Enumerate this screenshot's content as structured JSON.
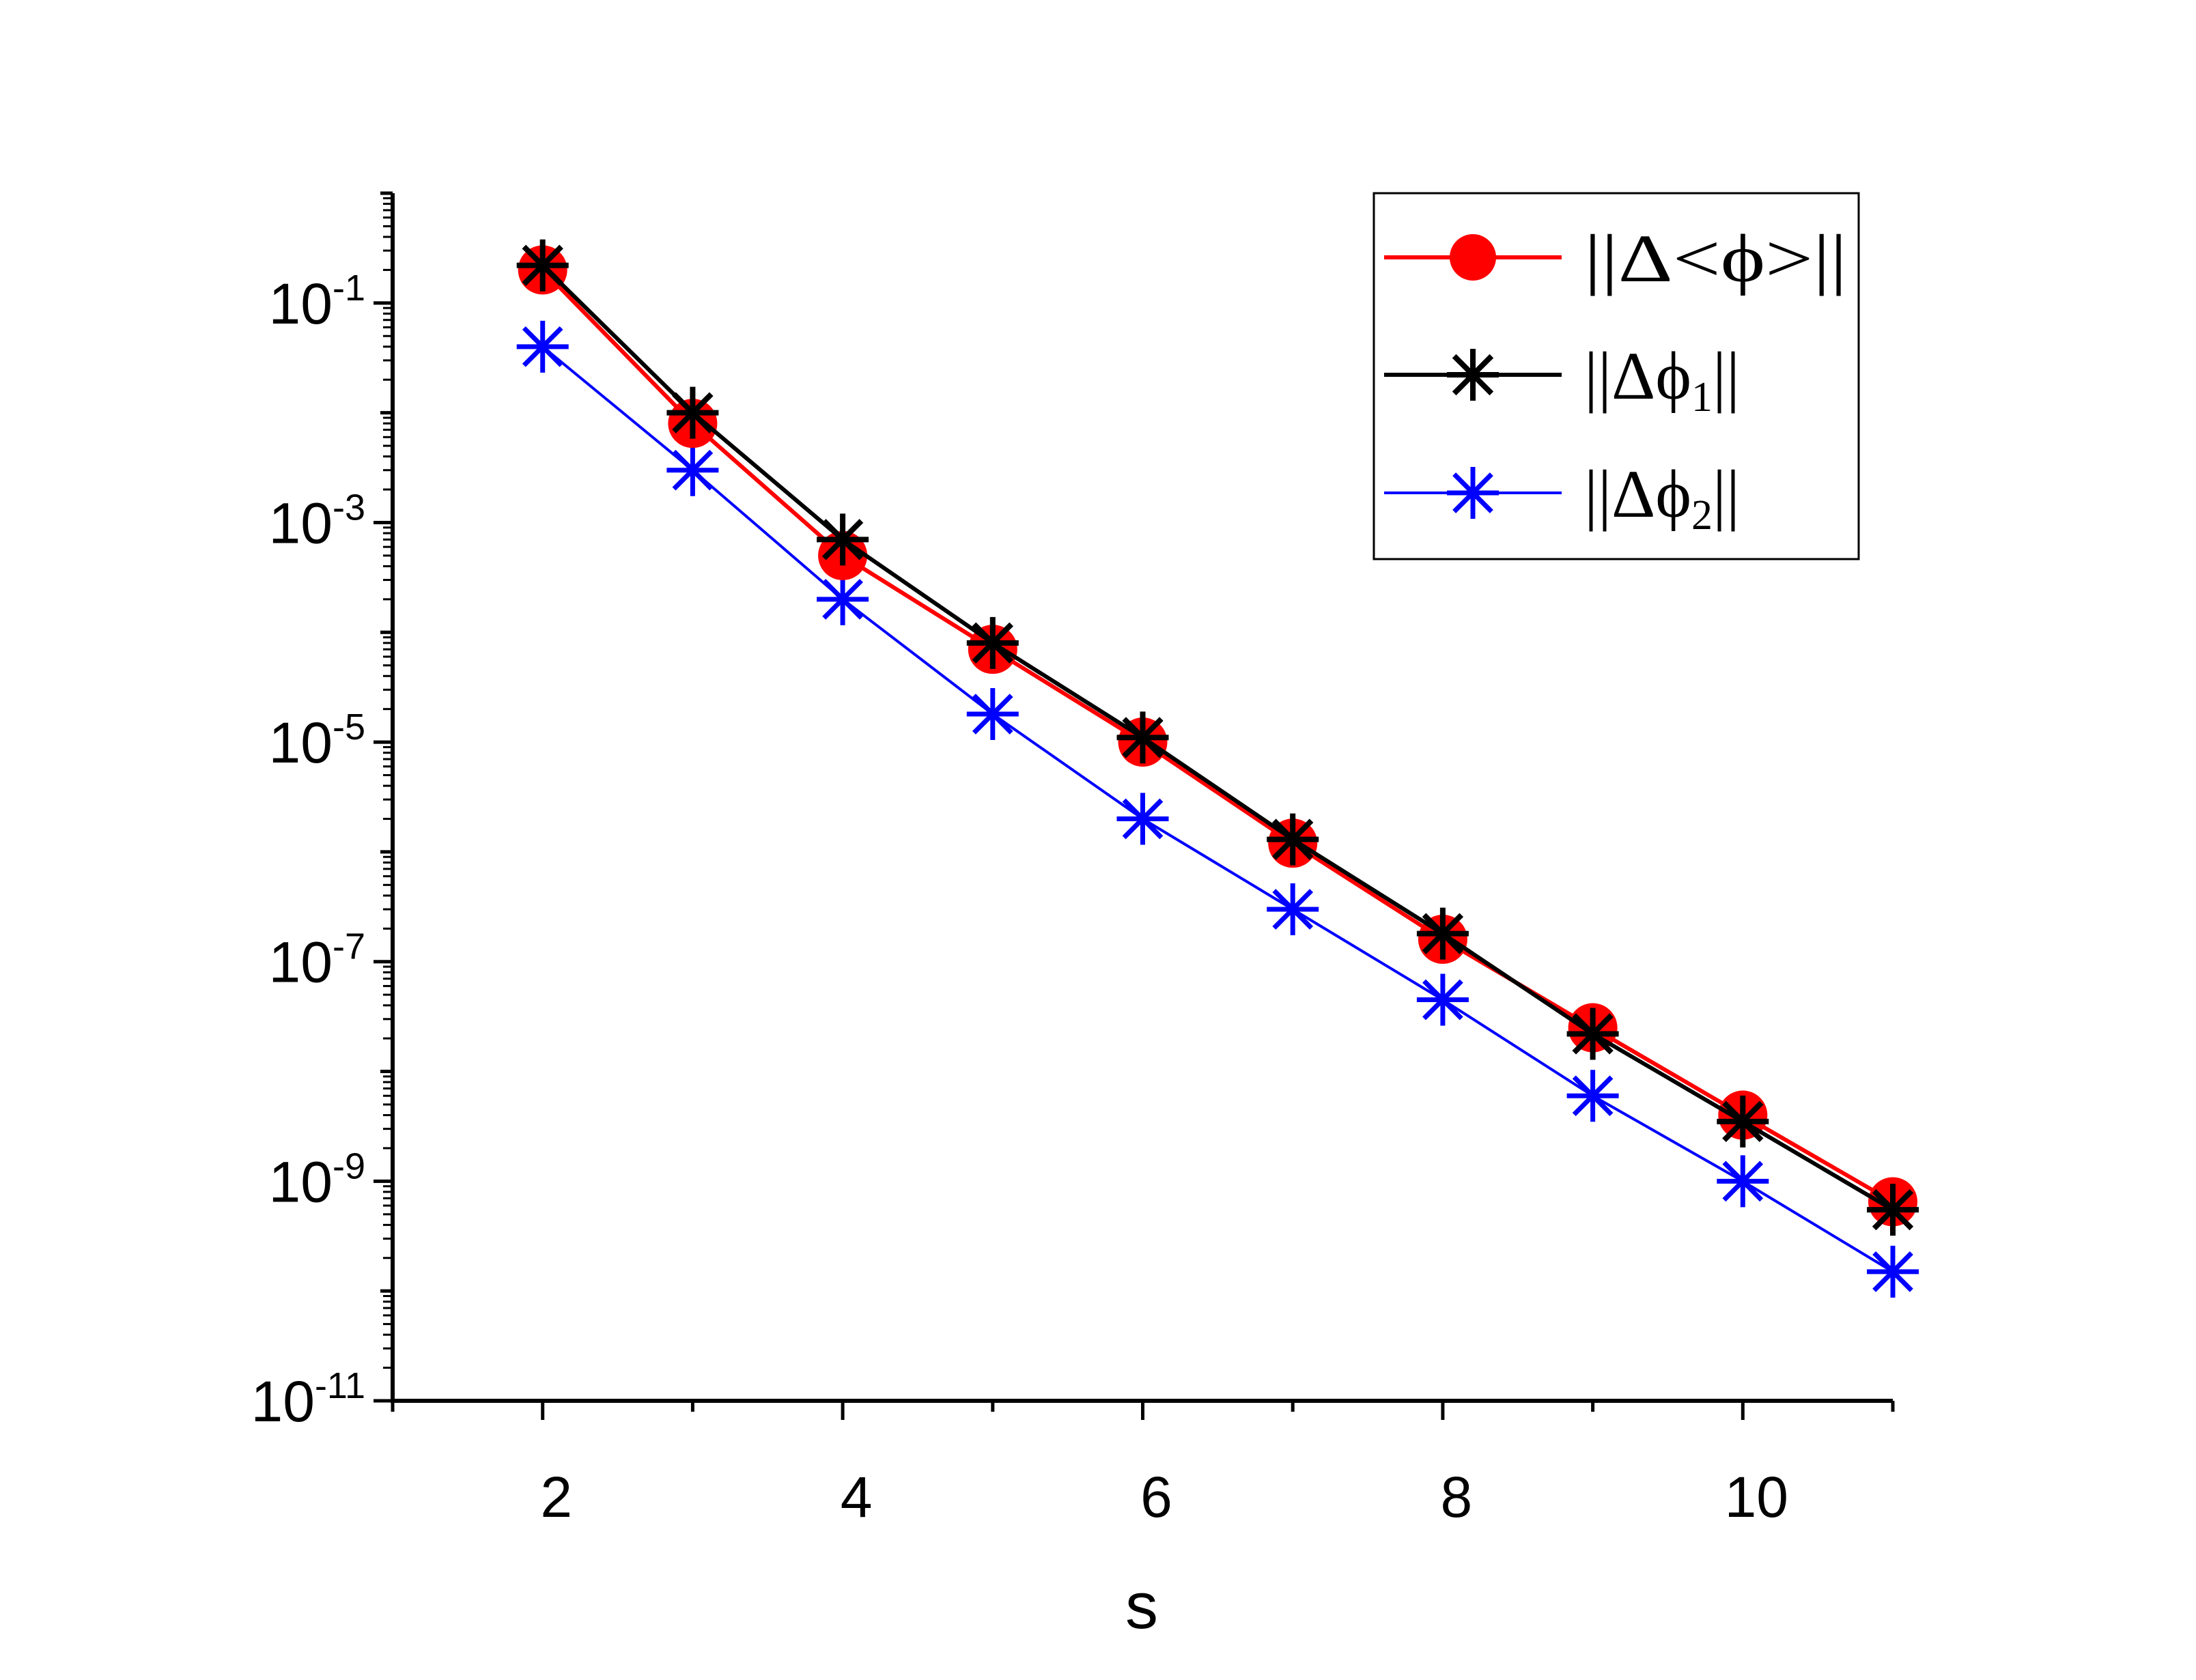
{
  "chart_data": {
    "type": "line",
    "title": "",
    "xlabel": "s",
    "ylabel": "",
    "yscale": "log",
    "xlim": [
      1,
      11
    ],
    "ylim": [
      1e-11,
      1
    ],
    "grid": false,
    "legend_position": "top-right",
    "xticks": [
      2,
      4,
      6,
      8,
      10
    ],
    "xtick_labels": [
      "2",
      "4",
      "6",
      "8",
      "10"
    ],
    "yticks": [
      {
        "value": 0.1,
        "base": "10",
        "exp": "-1"
      },
      {
        "value": 0.001,
        "base": "10",
        "exp": "-3"
      },
      {
        "value": 1e-05,
        "base": "10",
        "exp": "-5"
      },
      {
        "value": 1e-07,
        "base": "10",
        "exp": "-7"
      },
      {
        "value": 1e-09,
        "base": "10",
        "exp": "-9"
      },
      {
        "value": 1e-11,
        "base": "10",
        "exp": "-11"
      }
    ],
    "x": [
      2,
      3,
      4,
      5,
      6,
      7,
      8,
      9,
      10,
      11
    ],
    "series": [
      {
        "name": "||Δ<ϕ>||",
        "legend_main": "||Δ<ϕ>||",
        "legend_sub": "",
        "legend_tail": "",
        "color": "#ff0000",
        "marker": "circle",
        "values": [
          0.2,
          0.008,
          0.0005,
          7e-05,
          1e-05,
          1.2e-06,
          1.6e-07,
          2.5e-08,
          4e-09,
          6.5e-10
        ]
      },
      {
        "name": "||Δϕ1||",
        "legend_main": "||Δϕ",
        "legend_sub": "1",
        "legend_tail": "||",
        "color": "#000000",
        "marker": "asterisk",
        "values": [
          0.22,
          0.01,
          0.0007,
          8e-05,
          1.1e-05,
          1.3e-06,
          1.8e-07,
          2.2e-08,
          3.5e-09,
          5.5e-10
        ]
      },
      {
        "name": "||Δϕ2||",
        "legend_main": "||Δϕ",
        "legend_sub": "2",
        "legend_tail": "||",
        "color": "#0000ff",
        "marker": "asterisk",
        "values": [
          0.04,
          0.003,
          0.0002,
          1.8e-05,
          2e-06,
          3e-07,
          4.5e-08,
          6e-09,
          1e-09,
          1.5e-10
        ]
      }
    ]
  }
}
